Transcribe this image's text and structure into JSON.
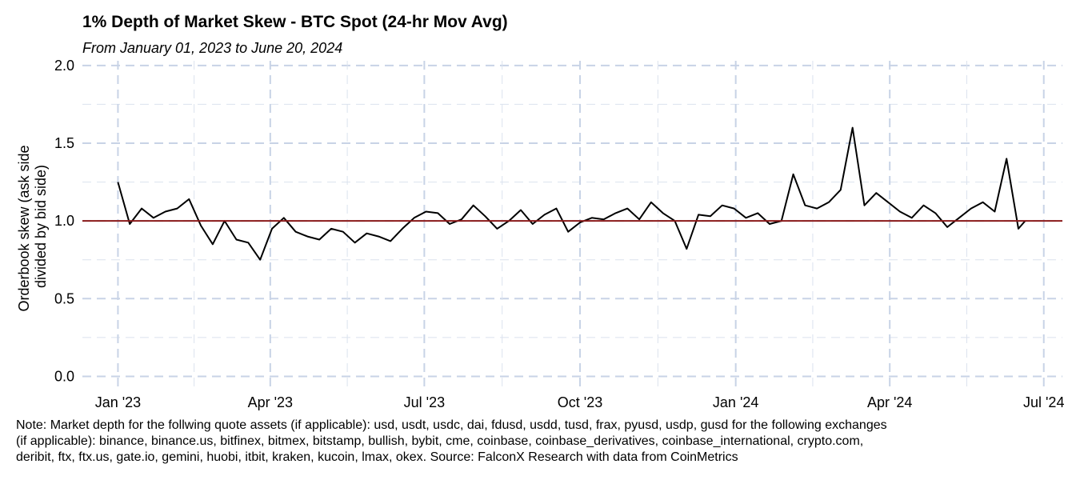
{
  "chart_data": {
    "type": "line",
    "title": "1% Depth of Market Skew - BTC Spot (24-hr Mov Avg)",
    "subtitle": "From January 01, 2023 to June 20, 2024",
    "ylabel": "Orderbook skew (ask side divided by bid side)",
    "ylabel_lines": [
      "Orderbook skew (ask side",
      "divided by bid side)"
    ],
    "xlabel": "",
    "ylim": [
      -0.08,
      2.03
    ],
    "y_ticks": [
      0.0,
      0.5,
      1.0,
      1.5,
      2.0
    ],
    "y_tick_labels": [
      "0.0",
      "0.5",
      "1.0",
      "1.5",
      "2.0"
    ],
    "xlim": [
      "2022-12-11",
      "2024-07-12"
    ],
    "x_ticks": [
      "2023-01-01",
      "2023-04-01",
      "2023-07-01",
      "2023-10-01",
      "2024-01-01",
      "2024-04-01",
      "2024-07-01"
    ],
    "x_tick_labels": [
      "Jan '23",
      "Apr '23",
      "Jul '23",
      "Oct '23",
      "Jan '24",
      "Apr '24",
      "Jul '24"
    ],
    "reference_line": {
      "y": 1.0,
      "color": "#8B1A1A"
    },
    "grid": true,
    "legend": "none",
    "series": [
      {
        "color": "#000000",
        "x": [
          "2023-01-01",
          "2023-01-08",
          "2023-01-15",
          "2023-01-22",
          "2023-01-29",
          "2023-02-05",
          "2023-02-12",
          "2023-02-19",
          "2023-02-26",
          "2023-03-05",
          "2023-03-12",
          "2023-03-19",
          "2023-03-26",
          "2023-04-02",
          "2023-04-09",
          "2023-04-16",
          "2023-04-23",
          "2023-04-30",
          "2023-05-07",
          "2023-05-14",
          "2023-05-21",
          "2023-05-28",
          "2023-06-04",
          "2023-06-11",
          "2023-06-18",
          "2023-06-25",
          "2023-07-02",
          "2023-07-09",
          "2023-07-16",
          "2023-07-23",
          "2023-07-30",
          "2023-08-06",
          "2023-08-13",
          "2023-08-20",
          "2023-08-27",
          "2023-09-03",
          "2023-09-10",
          "2023-09-17",
          "2023-09-24",
          "2023-10-01",
          "2023-10-08",
          "2023-10-15",
          "2023-10-22",
          "2023-10-29",
          "2023-11-05",
          "2023-11-12",
          "2023-11-19",
          "2023-11-26",
          "2023-12-03",
          "2023-12-10",
          "2023-12-17",
          "2023-12-24",
          "2023-12-31",
          "2024-01-07",
          "2024-01-14",
          "2024-01-21",
          "2024-01-28",
          "2024-02-04",
          "2024-02-11",
          "2024-02-18",
          "2024-02-25",
          "2024-03-03",
          "2024-03-10",
          "2024-03-17",
          "2024-03-24",
          "2024-03-31",
          "2024-04-07",
          "2024-04-14",
          "2024-04-21",
          "2024-04-28",
          "2024-05-05",
          "2024-05-12",
          "2024-05-19",
          "2024-05-26",
          "2024-06-02",
          "2024-06-09",
          "2024-06-16",
          "2024-06-20"
        ],
        "values": [
          1.25,
          0.98,
          1.08,
          1.02,
          1.06,
          1.08,
          1.14,
          0.97,
          0.85,
          1.0,
          0.88,
          0.86,
          0.75,
          0.95,
          1.02,
          0.93,
          0.9,
          0.88,
          0.95,
          0.93,
          0.86,
          0.92,
          0.9,
          0.87,
          0.95,
          1.02,
          1.06,
          1.05,
          0.98,
          1.01,
          1.1,
          1.03,
          0.95,
          1.0,
          1.07,
          0.98,
          1.04,
          1.08,
          0.93,
          0.99,
          1.02,
          1.01,
          1.05,
          1.08,
          1.01,
          1.12,
          1.05,
          1.0,
          0.82,
          1.04,
          1.03,
          1.1,
          1.08,
          1.02,
          1.05,
          0.98,
          1.0,
          1.3,
          1.1,
          1.08,
          1.12,
          1.2,
          1.6,
          1.1,
          1.18,
          1.12,
          1.06,
          1.02,
          1.1,
          1.05,
          0.96,
          1.02,
          1.08,
          1.12,
          1.06,
          1.4,
          0.95,
          1.0
        ]
      }
    ]
  },
  "note": {
    "lines": [
      "Note: Market depth for the follwing quote assets (if applicable): usd, usdt, usdc, dai, fdusd, usdd, tusd, frax, pyusd, usdp, gusd for the following exchanges",
      "(if applicable): binance, binance.us, bitfinex, bitmex, bitstamp, bullish, bybit, cme, coinbase, coinbase_derivatives, coinbase_international, crypto.com,",
      "deribit, ftx, ftx.us, gate.io, gemini, huobi, itbit, kraken, kucoin, lmax, okex. Source: FalconX Research with data from CoinMetrics"
    ]
  }
}
